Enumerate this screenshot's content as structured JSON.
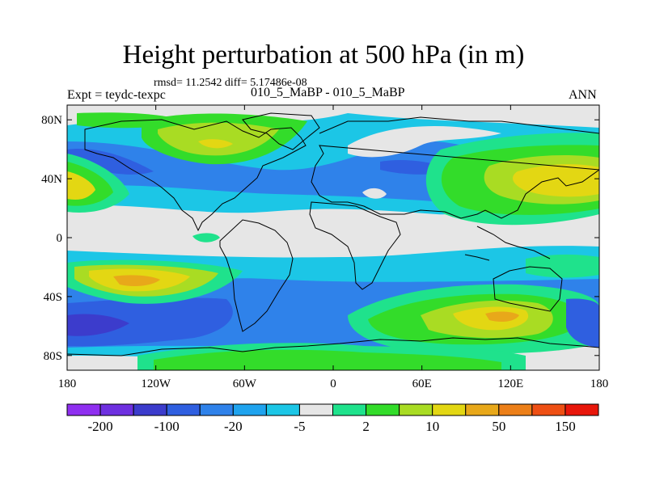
{
  "title": "Height perturbation at 500 hPa (in m)",
  "stats": "rmsd= 11.2542 diff= 5.17486e-08",
  "left_subtitle": "Expt = teydc-texpc",
  "center_subtitle": "010_5_MaBP - 010_5_MaBP",
  "right_subtitle": "ANN",
  "map": {
    "lon_range": [
      -180,
      180
    ],
    "lat_range": [
      -90,
      90
    ],
    "x_ticks": [
      {
        "lon": -180,
        "label": "180"
      },
      {
        "lon": -120,
        "label": "120W"
      },
      {
        "lon": -60,
        "label": "60W"
      },
      {
        "lon": 0,
        "label": "0"
      },
      {
        "lon": 60,
        "label": "60E"
      },
      {
        "lon": 120,
        "label": "120E"
      },
      {
        "lon": 180,
        "label": "180"
      }
    ],
    "y_ticks": [
      {
        "lat": 80,
        "label": "80N"
      },
      {
        "lat": 40,
        "label": "40N"
      },
      {
        "lat": 0,
        "label": "0"
      },
      {
        "lat": -40,
        "label": "40S"
      },
      {
        "lat": -80,
        "label": "80S"
      }
    ],
    "background_color": "#e6e6e6"
  },
  "colorbar": {
    "colors": [
      "#8f2ff0",
      "#6e30e0",
      "#3c3ccc",
      "#2f5fe0",
      "#2f82ea",
      "#1fa3ee",
      "#1cc6e6",
      "#e6e6e6",
      "#1fe28c",
      "#33dc2a",
      "#a9dc23",
      "#e3d713",
      "#e8a81a",
      "#ec7f19",
      "#ee4f14",
      "#e8170b"
    ],
    "labels": [
      {
        "boundary": 1,
        "text": "-200"
      },
      {
        "boundary": 3,
        "text": "-100"
      },
      {
        "boundary": 5,
        "text": "-20"
      },
      {
        "boundary": 7,
        "text": "-5"
      },
      {
        "boundary": 9,
        "text": "2"
      },
      {
        "boundary": 11,
        "text": "10"
      },
      {
        "boundary": 13,
        "text": "50"
      },
      {
        "boundary": 15,
        "text": "150"
      }
    ]
  }
}
